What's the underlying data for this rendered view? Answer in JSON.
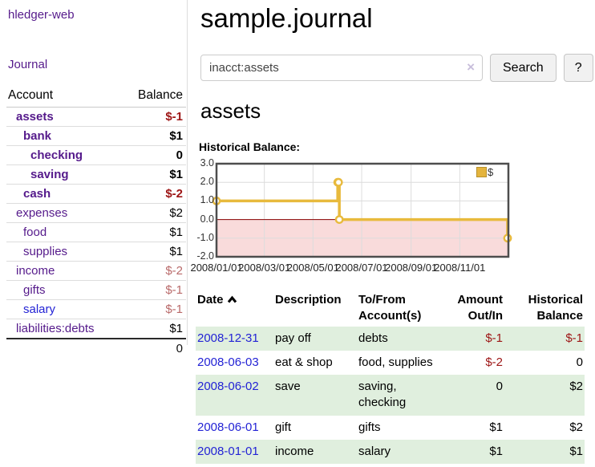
{
  "app": {
    "brand": "hledger-web",
    "nav_journal": "Journal"
  },
  "sidebar": {
    "accounts_table": {
      "headers": {
        "account": "Account",
        "balance": "Balance"
      },
      "rows": [
        {
          "account": "assets",
          "balance": "$-1",
          "level": 1,
          "bold": true
        },
        {
          "account": "bank",
          "balance": "$1",
          "level": 2,
          "bold": true
        },
        {
          "account": "checking",
          "balance": "0",
          "level": 3,
          "bold": true
        },
        {
          "account": "saving",
          "balance": "$1",
          "level": 3,
          "bold": true
        },
        {
          "account": "cash",
          "balance": "$-2",
          "level": 2,
          "bold": true
        },
        {
          "account": "expenses",
          "balance": "$2",
          "level": 1,
          "bold": false
        },
        {
          "account": "food",
          "balance": "$1",
          "level": 2,
          "bold": false
        },
        {
          "account": "supplies",
          "balance": "$1",
          "level": 2,
          "bold": false
        },
        {
          "account": "income",
          "balance": "$-2",
          "level": 1,
          "bold": false
        },
        {
          "account": "gifts",
          "balance": "$-1",
          "level": 2,
          "bold": false
        },
        {
          "account": "salary",
          "balance": "$-1",
          "level": 2,
          "bold": false,
          "link_color": "blue"
        },
        {
          "account": "liabilities:debts",
          "balance": "$1",
          "level": 1,
          "bold": false
        }
      ],
      "total": "0"
    }
  },
  "main": {
    "title": "sample.journal",
    "search": {
      "value": "inacct:assets",
      "clear_icon": "×",
      "button_label": "Search",
      "help_label": "?"
    },
    "account_heading": "assets",
    "chart_label": "Historical Balance:"
  },
  "chart_data": {
    "type": "line",
    "title": "Historical Balance:",
    "step": true,
    "series": [
      {
        "name": "$",
        "color": "#e8ba3d",
        "points": [
          [
            "2008-01-01",
            1
          ],
          [
            "2008-06-01",
            2
          ],
          [
            "2008-06-02",
            2
          ],
          [
            "2008-06-03",
            0
          ],
          [
            "2008-12-31",
            -1
          ]
        ]
      }
    ],
    "x_range": [
      "2008-01-01",
      "2009-01-01"
    ],
    "x_ticks": [
      "2008/01/01",
      "2008/03/01",
      "2008/05/01",
      "2008/07/01",
      "2008/09/01",
      "2008/11/01"
    ],
    "y_ticks": [
      "3.0",
      "2.0",
      "1.0",
      "0.0",
      "-1.0",
      "-2.0"
    ],
    "ylim": [
      -2,
      3
    ],
    "grid": true,
    "legend": {
      "label": "$",
      "position": "top-right"
    },
    "colors": {
      "negative_region": "#f9dbdb",
      "zero_line": "#8b0000",
      "grid": "#dcdcdc",
      "border": "#4d4d4d"
    }
  },
  "register": {
    "headers": {
      "date": "Date",
      "description": "Description",
      "accounts": "To/From Account(s)",
      "amount": "Amount Out/In",
      "balance": "Historical Balance"
    },
    "sort": {
      "column": "date",
      "direction": "asc"
    },
    "rows": [
      {
        "date": "2008-12-31",
        "description": "pay off",
        "accounts": "debts",
        "amount": "$-1",
        "balance": "$-1"
      },
      {
        "date": "2008-06-03",
        "description": "eat & shop",
        "accounts": "food, supplies",
        "amount": "$-2",
        "balance": "0"
      },
      {
        "date": "2008-06-02",
        "description": "save",
        "accounts": "saving, checking",
        "amount": "0",
        "balance": "$2"
      },
      {
        "date": "2008-06-01",
        "description": "gift",
        "accounts": "gifts",
        "amount": "$1",
        "balance": "$2"
      },
      {
        "date": "2008-01-01",
        "description": "income",
        "accounts": "salary",
        "amount": "$1",
        "balance": "$1"
      }
    ]
  },
  "colors": {
    "purple_link": "#551a8b",
    "blue_link": "#2323d5",
    "accent_gold": "#e8ba3d",
    "row_green": "#e0efde",
    "negative_strong": "#9d1515",
    "negative_muted": "#b96a6a"
  }
}
